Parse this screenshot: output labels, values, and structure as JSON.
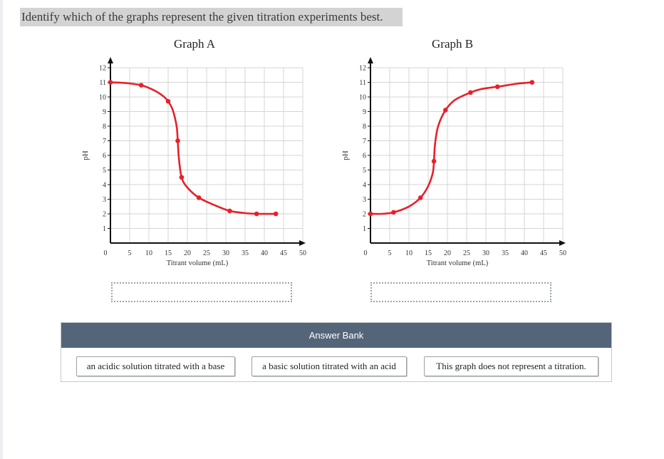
{
  "question": "Identify which of the graphs represent the given titration experiments best.",
  "colors": {
    "curve": "#e8202a",
    "grid": "#d4d4d4",
    "bank_header": "#546579"
  },
  "graphs": [
    {
      "title": "Graph A",
      "ylabel": "pH",
      "xlabel": "Titrant volume (mL)",
      "x_ticks": [
        "0",
        "5",
        "10",
        "15",
        "20",
        "25",
        "30",
        "35",
        "40",
        "45",
        "50"
      ],
      "y_ticks": [
        "1",
        "2",
        "3",
        "4",
        "5",
        "6",
        "7",
        "8",
        "9",
        "10",
        "11",
        "12"
      ]
    },
    {
      "title": "Graph B",
      "ylabel": "pH",
      "xlabel": "Titrant volume (mL)",
      "x_ticks": [
        "0",
        "5",
        "10",
        "15",
        "20",
        "25",
        "30",
        "35",
        "40",
        "45",
        "50"
      ],
      "y_ticks": [
        "1",
        "2",
        "3",
        "4",
        "5",
        "6",
        "7",
        "8",
        "9",
        "10",
        "11",
        "12"
      ]
    }
  ],
  "chart_data": [
    {
      "type": "line",
      "title": "Graph A",
      "xlabel": "Titrant volume (mL)",
      "ylabel": "pH",
      "xlim": [
        0,
        50
      ],
      "ylim": [
        0,
        12
      ],
      "grid": true,
      "points": [
        [
          0,
          11.0
        ],
        [
          8,
          10.8
        ],
        [
          15,
          9.7
        ],
        [
          17.5,
          7.0
        ],
        [
          18.5,
          4.5
        ],
        [
          23,
          3.1
        ],
        [
          31,
          2.2
        ],
        [
          38,
          2.0
        ],
        [
          43,
          2.0
        ]
      ],
      "curve": [
        [
          0,
          11.0
        ],
        [
          4,
          10.95
        ],
        [
          8,
          10.8
        ],
        [
          11,
          10.5
        ],
        [
          13.5,
          10.1
        ],
        [
          15,
          9.7
        ],
        [
          16.2,
          9.1
        ],
        [
          17.2,
          8.0
        ],
        [
          17.5,
          7.0
        ],
        [
          17.8,
          5.8
        ],
        [
          18.5,
          4.5
        ],
        [
          20,
          3.8
        ],
        [
          23,
          3.1
        ],
        [
          27,
          2.6
        ],
        [
          31,
          2.2
        ],
        [
          35,
          2.05
        ],
        [
          38,
          2.0
        ],
        [
          43,
          2.0
        ]
      ]
    },
    {
      "type": "line",
      "title": "Graph B",
      "xlabel": "Titrant volume (mL)",
      "ylabel": "pH",
      "xlim": [
        0,
        50
      ],
      "ylim": [
        0,
        12
      ],
      "grid": true,
      "points": [
        [
          0,
          2.0
        ],
        [
          6,
          2.1
        ],
        [
          13,
          3.1
        ],
        [
          16.5,
          5.6
        ],
        [
          19.5,
          9.1
        ],
        [
          26,
          10.3
        ],
        [
          33,
          10.7
        ],
        [
          42,
          11.0
        ]
      ],
      "curve": [
        [
          0,
          2.0
        ],
        [
          3,
          2.0
        ],
        [
          6,
          2.1
        ],
        [
          10,
          2.5
        ],
        [
          13,
          3.1
        ],
        [
          15,
          3.9
        ],
        [
          16.2,
          4.8
        ],
        [
          16.5,
          5.6
        ],
        [
          16.8,
          6.8
        ],
        [
          17.6,
          8.0
        ],
        [
          19.5,
          9.1
        ],
        [
          22,
          9.8
        ],
        [
          26,
          10.3
        ],
        [
          29,
          10.55
        ],
        [
          33,
          10.7
        ],
        [
          38,
          10.9
        ],
        [
          42,
          11.0
        ]
      ]
    }
  ],
  "answer_bank": {
    "title": "Answer Bank",
    "options": [
      "an acidic solution titrated with a base",
      "a basic solution titrated with an acid",
      "This graph does not represent a titration."
    ]
  }
}
